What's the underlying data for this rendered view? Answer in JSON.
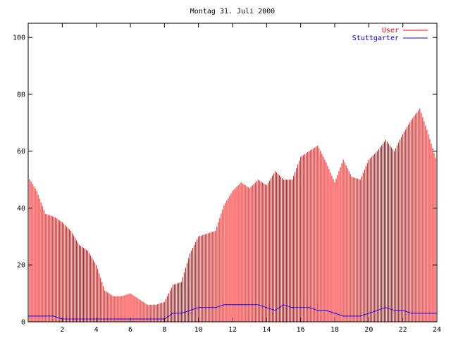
{
  "chart_data": {
    "type": "bar",
    "title": "Montag 31. Juli 2000",
    "xlim": [
      0,
      24
    ],
    "ylim": [
      0,
      105
    ],
    "xticks": [
      2,
      4,
      6,
      8,
      10,
      12,
      14,
      16,
      18,
      20,
      22,
      24
    ],
    "yticks": [
      0,
      20,
      40,
      60,
      80,
      100
    ],
    "legend_position": "top-right",
    "series": [
      {
        "name": "User",
        "style": "impulses",
        "color": "#ff0000",
        "x": [
          0.0,
          0.5,
          1.0,
          1.5,
          2.0,
          2.5,
          3.0,
          3.5,
          4.0,
          4.5,
          5.0,
          5.5,
          6.0,
          6.5,
          7.0,
          7.5,
          8.0,
          8.5,
          9.0,
          9.5,
          10.0,
          10.5,
          11.0,
          11.5,
          12.0,
          12.5,
          13.0,
          13.5,
          14.0,
          14.5,
          15.0,
          15.5,
          16.0,
          16.5,
          17.0,
          17.5,
          18.0,
          18.5,
          19.0,
          19.5,
          20.0,
          20.5,
          21.0,
          21.5,
          22.0,
          22.5,
          23.0,
          23.5,
          24.0
        ],
        "values": [
          51,
          46,
          38,
          37,
          35,
          32,
          27,
          25,
          20,
          11,
          9,
          9,
          10,
          8,
          6,
          6,
          7,
          13,
          14,
          24,
          30,
          31,
          32,
          41,
          46,
          49,
          47,
          50,
          48,
          53,
          50,
          50,
          58,
          60,
          62,
          56,
          49,
          57,
          51,
          50,
          57,
          60,
          64,
          60,
          66,
          71,
          75,
          66,
          56
        ]
      },
      {
        "name": "Stuttgarter",
        "style": "line",
        "color": "#0000ff",
        "x": [
          0.0,
          0.5,
          1.0,
          1.5,
          2.0,
          2.5,
          3.0,
          3.5,
          4.0,
          4.5,
          5.0,
          5.5,
          6.0,
          6.5,
          7.0,
          7.5,
          8.0,
          8.5,
          9.0,
          9.5,
          10.0,
          10.5,
          11.0,
          11.5,
          12.0,
          12.5,
          13.0,
          13.5,
          14.0,
          14.5,
          15.0,
          15.5,
          16.0,
          16.5,
          17.0,
          17.5,
          18.0,
          18.5,
          19.0,
          19.5,
          20.0,
          20.5,
          21.0,
          21.5,
          22.0,
          22.5,
          23.0,
          23.5,
          24.0
        ],
        "values": [
          2,
          2,
          2,
          2,
          1,
          1,
          1,
          1,
          1,
          1,
          1,
          1,
          1,
          1,
          1,
          1,
          1,
          3,
          3,
          4,
          5,
          5,
          5,
          6,
          6,
          6,
          6,
          6,
          5,
          4,
          6,
          5,
          5,
          5,
          4,
          4,
          3,
          2,
          2,
          2,
          3,
          4,
          5,
          4,
          4,
          3,
          3,
          3,
          3
        ]
      }
    ]
  }
}
